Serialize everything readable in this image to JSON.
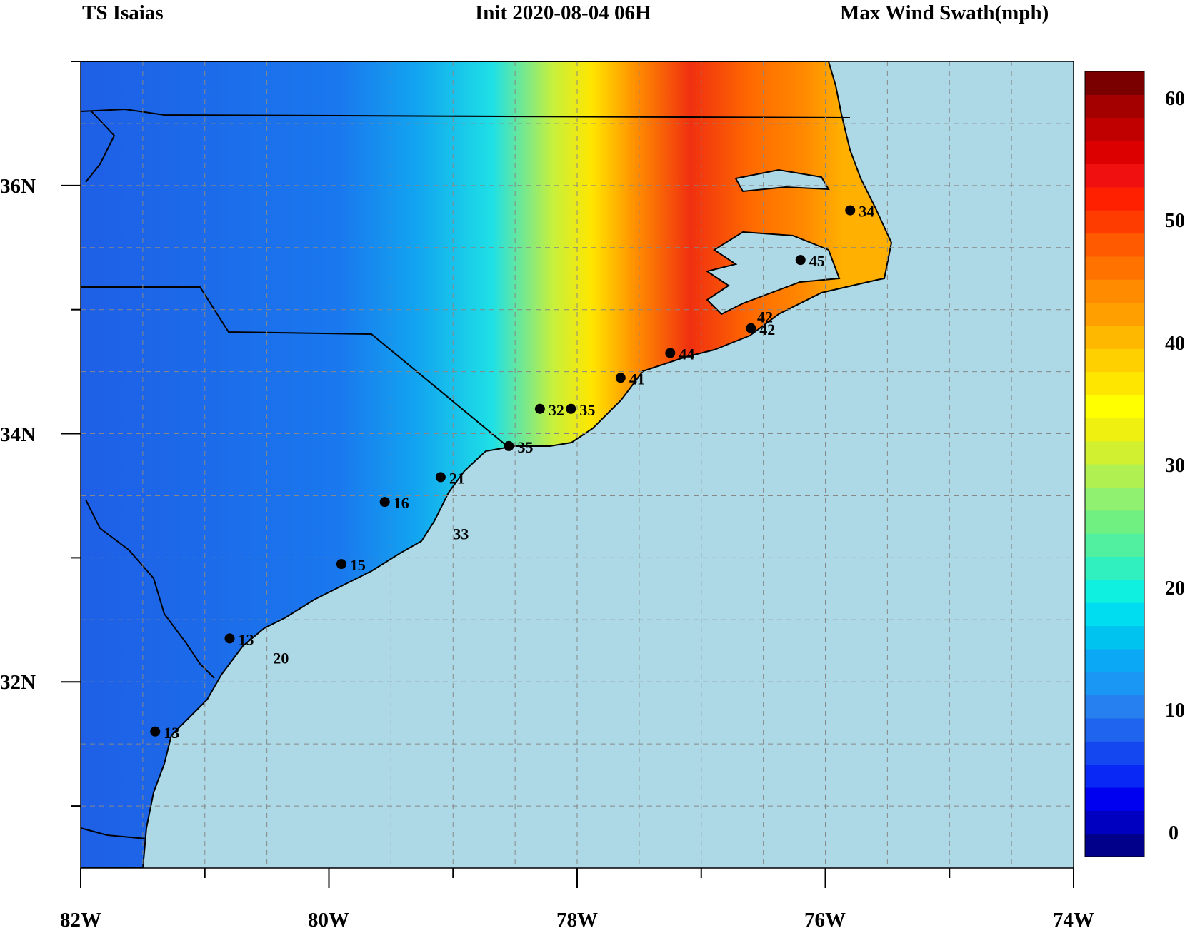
{
  "header": {
    "left": "TS Isaias",
    "center": "Init  2020-08-04 06H",
    "right": "Max Wind Swath(mph)"
  },
  "map": {
    "lon_range": [
      -82,
      -74
    ],
    "lat_range": [
      30.5,
      37.0
    ],
    "ocean_color": "#add8e6",
    "x_ticks": [
      "82W",
      "80W",
      "78W",
      "76W",
      "74W"
    ],
    "y_ticks": [
      "36N",
      "34N",
      "32N"
    ],
    "stations": [
      {
        "lon": -81.4,
        "lat": 31.6,
        "value": "13"
      },
      {
        "lon": -80.8,
        "lat": 32.35,
        "value": "13"
      },
      {
        "lon": -79.9,
        "lat": 32.95,
        "value": "15"
      },
      {
        "lon": -79.55,
        "lat": 33.45,
        "value": "16"
      },
      {
        "lon": -79.1,
        "lat": 33.65,
        "value": "21"
      },
      {
        "lon": -78.55,
        "lat": 33.9,
        "value": "35"
      },
      {
        "lon": -78.3,
        "lat": 34.2,
        "value": "32"
      },
      {
        "lon": -78.05,
        "lat": 34.2,
        "value": "35"
      },
      {
        "lon": -77.65,
        "lat": 34.45,
        "value": "41"
      },
      {
        "lon": -77.25,
        "lat": 34.65,
        "value": "44"
      },
      {
        "lon": -76.6,
        "lat": 34.85,
        "value": "42"
      },
      {
        "lon": -76.2,
        "lat": 35.4,
        "value": "45"
      },
      {
        "lon": -75.8,
        "lat": 35.8,
        "value": "34"
      }
    ],
    "extra_labels": [
      {
        "lon": -76.55,
        "lat": 34.95,
        "value": "42"
      },
      {
        "lon": -79.0,
        "lat": 33.2,
        "value": "33"
      },
      {
        "lon": -80.45,
        "lat": 32.2,
        "value": "20"
      }
    ]
  },
  "colorbar": {
    "ticks": [
      "60",
      "50",
      "40",
      "30",
      "20",
      "10",
      "0"
    ],
    "min": 0,
    "max": 62,
    "colors": [
      "#00008b",
      "#0000c0",
      "#0000f0",
      "#0a28f5",
      "#1447f0",
      "#1e64ee",
      "#2680f0",
      "#1a96f5",
      "#0aa8f5",
      "#00c3f0",
      "#00dcf0",
      "#10f0e0",
      "#30f0c0",
      "#50f0a0",
      "#70f080",
      "#90f070",
      "#b0f050",
      "#d0f030",
      "#f0f010",
      "#ffff00",
      "#ffe600",
      "#ffd000",
      "#ffb800",
      "#ffa000",
      "#ff8c00",
      "#ff7200",
      "#ff5a00",
      "#ff3c00",
      "#ff2000",
      "#f01010",
      "#dc0000",
      "#c00000",
      "#a40000",
      "#7a0000"
    ]
  }
}
